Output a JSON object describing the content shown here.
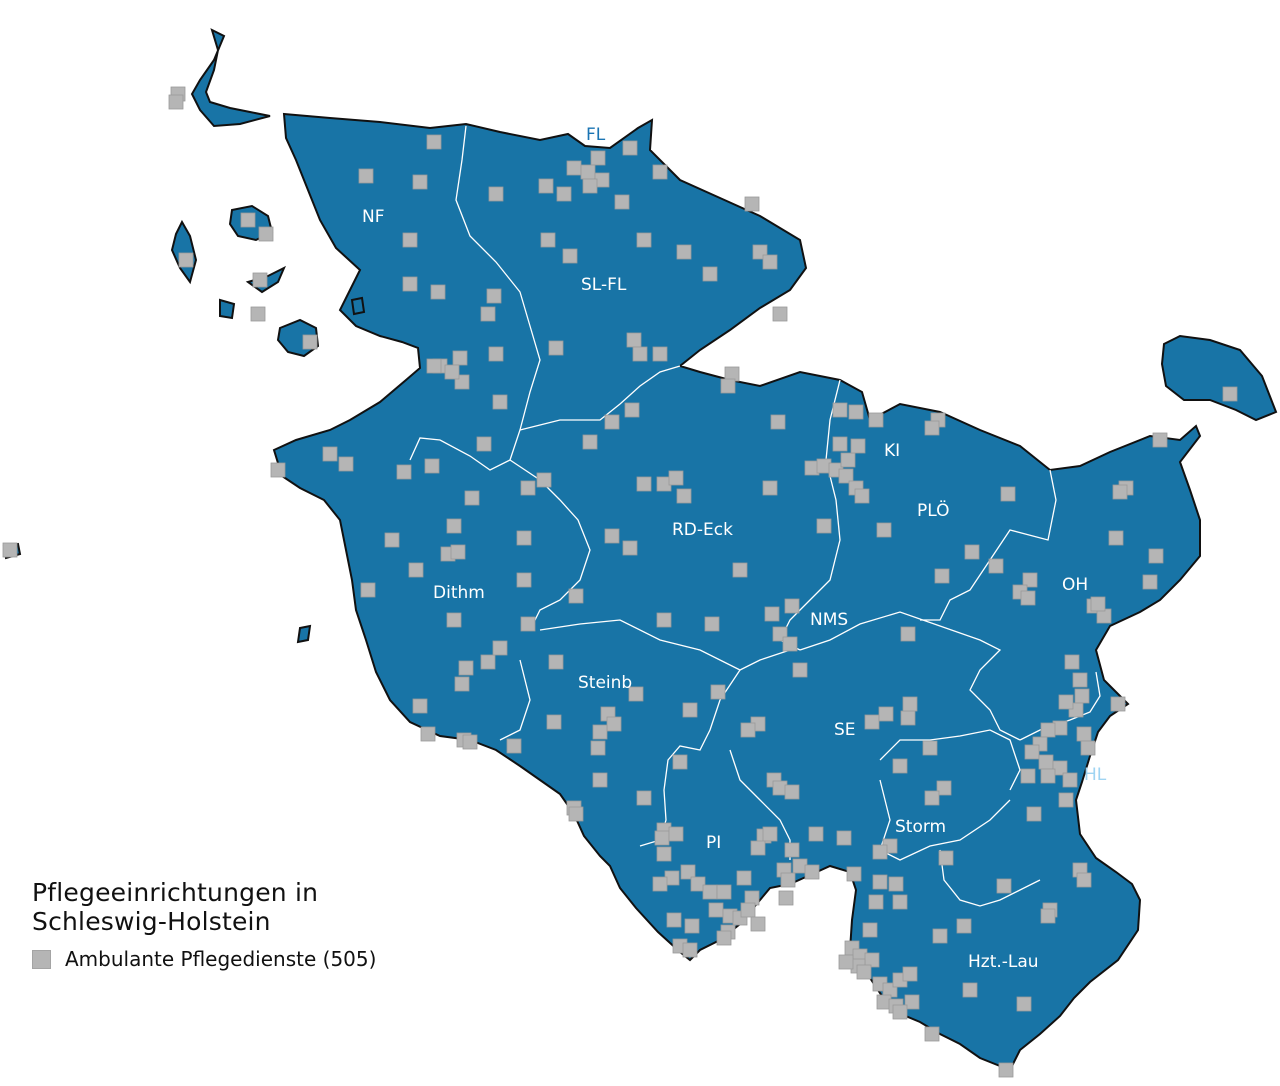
{
  "colors": {
    "land": "#1874a6",
    "coast": "#111111",
    "border": "#ffffff",
    "marker": "#b5b5b5",
    "marker_edge": "#9a9a9a",
    "city_label": "#1a74b3"
  },
  "legend": {
    "title_line1": "Pflegeeinrichtungen in",
    "title_line2": "Schleswig-Holstein",
    "item_label": "Ambulante Pflegedienste",
    "item_count": "(505)"
  },
  "districts": [
    {
      "code": "NF"
    },
    {
      "code": "SL-FL"
    },
    {
      "code": "RD-Eck"
    },
    {
      "code": "Dithm"
    },
    {
      "code": "PLÖ"
    },
    {
      "code": "OH"
    },
    {
      "code": "NMS"
    },
    {
      "code": "Steinb"
    },
    {
      "code": "SE"
    },
    {
      "code": "PI"
    },
    {
      "code": "Storm"
    },
    {
      "code": "Hzt.-Lau"
    }
  ],
  "cities": [
    {
      "code": "FL"
    },
    {
      "code": "KI"
    },
    {
      "code": "HL"
    }
  ],
  "marker_icon": "square-marker"
}
